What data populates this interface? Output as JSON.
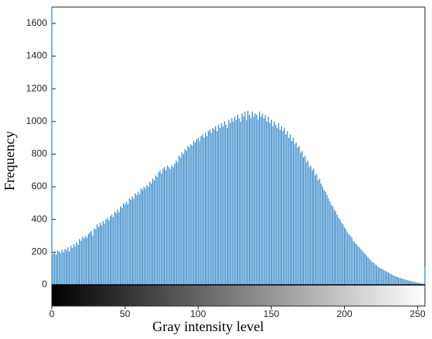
{
  "chart_data": {
    "type": "histogram",
    "xlabel": "Gray intensity level",
    "ylabel": "Frequency",
    "color": "#2f86c9",
    "xlim": [
      0,
      255
    ],
    "ylim": [
      0,
      1700
    ],
    "xticks": [
      0,
      50,
      100,
      150,
      200,
      250
    ],
    "yticks": [
      0,
      200,
      400,
      600,
      800,
      1000,
      1200,
      1400,
      1600
    ],
    "values": [
      1700,
      190,
      200,
      185,
      210,
      205,
      195,
      215,
      200,
      220,
      210,
      230,
      205,
      240,
      225,
      250,
      235,
      260,
      245,
      280,
      270,
      295,
      285,
      300,
      290,
      310,
      320,
      330,
      300,
      345,
      340,
      370,
      355,
      380,
      365,
      390,
      375,
      400,
      410,
      395,
      420,
      430,
      415,
      450,
      440,
      460,
      445,
      480,
      470,
      500,
      490,
      510,
      495,
      530,
      520,
      540,
      525,
      560,
      550,
      570,
      555,
      590,
      580,
      600,
      590,
      610,
      600,
      630,
      620,
      650,
      640,
      670,
      660,
      690,
      700,
      680,
      710,
      720,
      700,
      730,
      720,
      710,
      730,
      720,
      740,
      760,
      750,
      790,
      780,
      810,
      800,
      830,
      820,
      850,
      840,
      860,
      850,
      880,
      870,
      890,
      900,
      880,
      910,
      920,
      900,
      930,
      910,
      940,
      950,
      930,
      960,
      950,
      970,
      940,
      980,
      960,
      990,
      970,
      1000,
      980,
      960,
      1010,
      990,
      1020,
      1000,
      1030,
      1010,
      1040,
      1020,
      1000,
      1050,
      1030,
      1060,
      1010,
      1065,
      1040,
      1020,
      1060,
      1030,
      1050,
      1040,
      1010,
      1060,
      1030,
      1050,
      1020,
      1040,
      1000,
      1030,
      990,
      1010,
      970,
      1000,
      980,
      960,
      990,
      950,
      970,
      940,
      960,
      920,
      940,
      900,
      920,
      880,
      900,
      860,
      870,
      840,
      850,
      810,
      820,
      780,
      790,
      750,
      760,
      720,
      730,
      700,
      710,
      670,
      680,
      640,
      650,
      620,
      600,
      580,
      570,
      550,
      530,
      510,
      490,
      480,
      460,
      450,
      430,
      410,
      400,
      380,
      370,
      350,
      340,
      320,
      310,
      300,
      290,
      270,
      260,
      250,
      240,
      230,
      220,
      210,
      200,
      190,
      180,
      170,
      160,
      150,
      140,
      135,
      125,
      120,
      110,
      105,
      100,
      95,
      90,
      85,
      80,
      75,
      70,
      65,
      60,
      56,
      52,
      48,
      45,
      42,
      40,
      37,
      34,
      31,
      28,
      26,
      24,
      22,
      20,
      18,
      16,
      14,
      12,
      10,
      8,
      6,
      110
    ]
  }
}
